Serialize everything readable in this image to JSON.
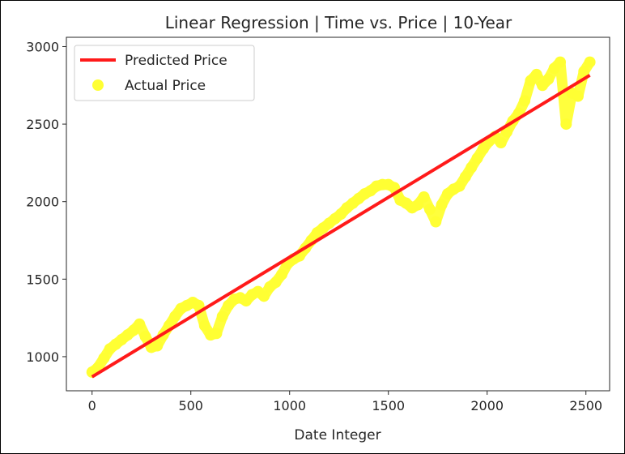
{
  "chart_data": {
    "type": "scatter",
    "title": "Linear Regression | Time vs. Price | 10-Year",
    "xlabel": "Date Integer",
    "ylabel": "",
    "xlim": [
      -130,
      2620
    ],
    "ylim": [
      780,
      3060
    ],
    "x_ticks": [
      0,
      500,
      1000,
      1500,
      2000,
      2500
    ],
    "y_ticks": [
      1000,
      1500,
      2000,
      2500,
      3000
    ],
    "grid": false,
    "legend_position": "top-left",
    "colors": {
      "predicted": "#ff1a1a",
      "actual": "#ffff33",
      "axes": "#262626"
    },
    "series": [
      {
        "name": "Predicted Price",
        "kind": "line",
        "x": [
          0,
          2520
        ],
        "y": [
          870,
          2815
        ]
      },
      {
        "name": "Actual Price",
        "kind": "scatter",
        "x": [
          0,
          30,
          60,
          90,
          120,
          150,
          180,
          210,
          240,
          270,
          300,
          330,
          360,
          390,
          420,
          450,
          480,
          510,
          540,
          570,
          600,
          630,
          660,
          690,
          720,
          750,
          780,
          810,
          840,
          870,
          900,
          930,
          960,
          990,
          1020,
          1050,
          1080,
          1110,
          1140,
          1170,
          1200,
          1230,
          1260,
          1290,
          1320,
          1350,
          1380,
          1410,
          1440,
          1470,
          1500,
          1530,
          1560,
          1590,
          1620,
          1650,
          1680,
          1710,
          1740,
          1770,
          1800,
          1830,
          1860,
          1890,
          1920,
          1950,
          1980,
          2010,
          2040,
          2070,
          2100,
          2130,
          2160,
          2190,
          2220,
          2250,
          2280,
          2310,
          2340,
          2370,
          2400,
          2430,
          2460,
          2490,
          2520
        ],
        "y": [
          900,
          930,
          990,
          1050,
          1080,
          1110,
          1140,
          1170,
          1210,
          1130,
          1060,
          1070,
          1140,
          1200,
          1260,
          1310,
          1330,
          1350,
          1330,
          1200,
          1140,
          1150,
          1260,
          1330,
          1370,
          1380,
          1360,
          1400,
          1420,
          1390,
          1450,
          1480,
          1530,
          1600,
          1630,
          1650,
          1700,
          1750,
          1800,
          1830,
          1860,
          1890,
          1920,
          1960,
          1990,
          2020,
          2050,
          2070,
          2100,
          2110,
          2110,
          2090,
          2010,
          1990,
          1960,
          1980,
          2030,
          1950,
          1870,
          1980,
          2050,
          2080,
          2100,
          2160,
          2220,
          2280,
          2340,
          2390,
          2420,
          2380,
          2450,
          2520,
          2570,
          2650,
          2780,
          2820,
          2750,
          2790,
          2860,
          2900,
          2500,
          2700,
          2680,
          2840,
          2900
        ]
      }
    ]
  }
}
